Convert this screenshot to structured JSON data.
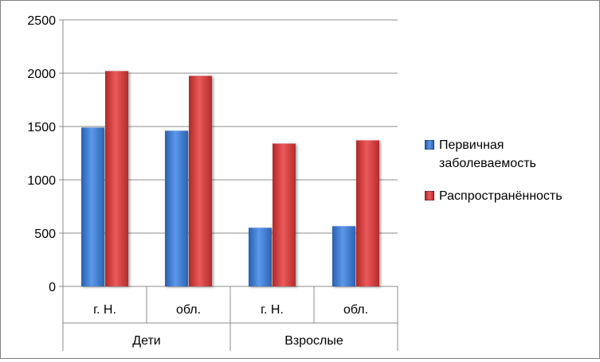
{
  "chart_data": {
    "type": "bar",
    "groups": [
      {
        "label": "Дети",
        "categories": [
          "г. Н.",
          "обл."
        ]
      },
      {
        "label": "Взрослые",
        "categories": [
          "г. Н.",
          "обл."
        ]
      }
    ],
    "categories": [
      "г. Н.",
      "обл.",
      "г. Н.",
      "обл."
    ],
    "series": [
      {
        "name": "Первичная заболеваемость",
        "color": "#3f7fd8",
        "values": [
          1490,
          1460,
          550,
          565
        ]
      },
      {
        "name": "Распространённость",
        "color": "#d83a3a",
        "values": [
          2020,
          1975,
          1340,
          1370
        ]
      }
    ],
    "ylim": [
      0,
      2500
    ],
    "yticks": [
      "0",
      "500",
      "1000",
      "1500",
      "2000",
      "2500"
    ],
    "grid": true,
    "legend_position": "right"
  }
}
